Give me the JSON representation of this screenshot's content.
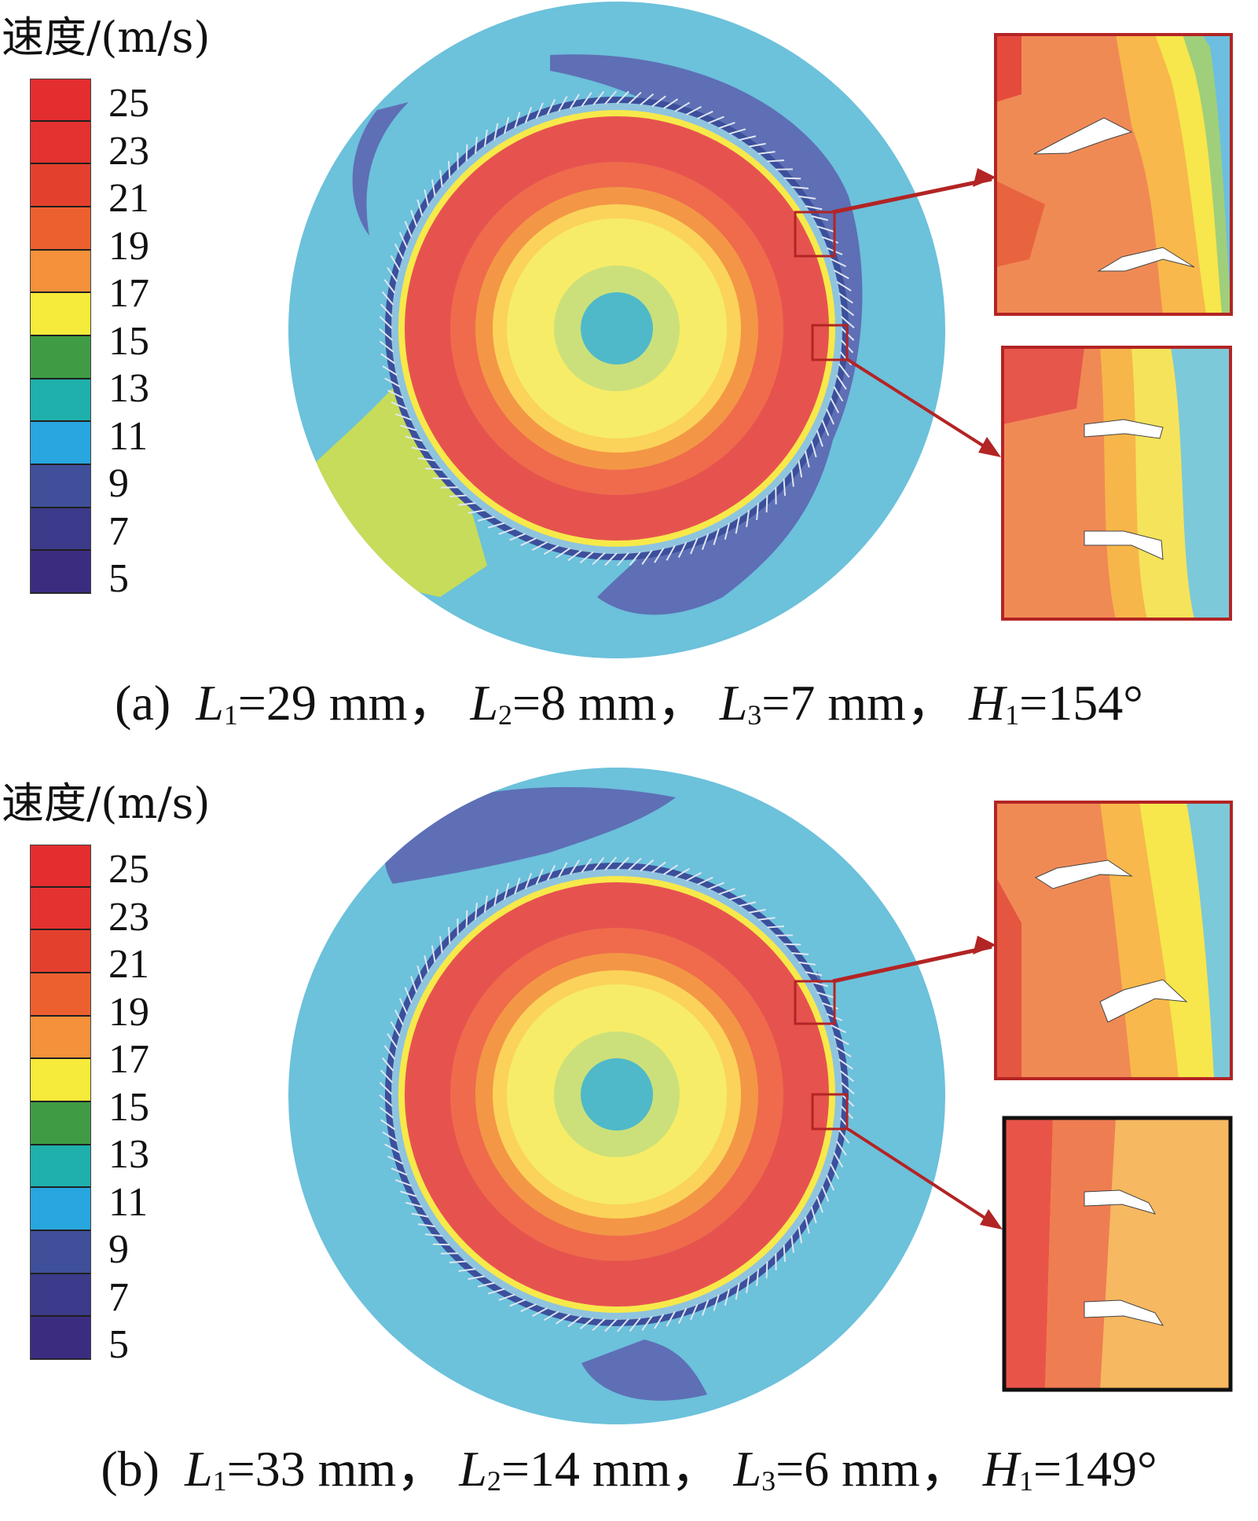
{
  "colorbar_colors": [
    "#e32d2f",
    "#e3322f",
    "#e4402e",
    "#ec6030",
    "#f4913a",
    "#f6ea3a",
    "#3f9c44",
    "#1fb0ac",
    "#28a6df",
    "#3f4f99",
    "#3c3a8a",
    "#3b2c80"
  ],
  "panels": [
    {
      "unit_title": "速度/(m/s)",
      "ticks": [
        "25",
        "23",
        "21",
        "19",
        "17",
        "15",
        "13",
        "11",
        "9",
        "7",
        "5"
      ],
      "caption": {
        "label": "(a)",
        "L1_sym": "L",
        "L1_sub": "1",
        "L1_val": "=29 mm，",
        "L2_sym": "L",
        "L2_sub": "2",
        "L2_val": "=8 mm，",
        "L3_sym": "L",
        "L3_sub": "3",
        "L3_val": "=7 mm，",
        "H1_sym": "H",
        "H1_sub": "1",
        "H1_val": "=154°"
      }
    },
    {
      "unit_title": "速度/(m/s)",
      "ticks": [
        "25",
        "23",
        "21",
        "19",
        "17",
        "15",
        "13",
        "11",
        "9",
        "7",
        "5"
      ],
      "caption": {
        "label": "(b)",
        "L1_sym": "L",
        "L1_sub": "1",
        "L1_val": "=33 mm，",
        "L2_sym": "L",
        "L2_sub": "2",
        "L2_val": "=14 mm，",
        "L3_sym": "L",
        "L3_sub": "3",
        "L3_val": "=6 mm，",
        "H1_sym": "H",
        "H1_sub": "1",
        "H1_val": "=149°"
      }
    }
  ]
}
